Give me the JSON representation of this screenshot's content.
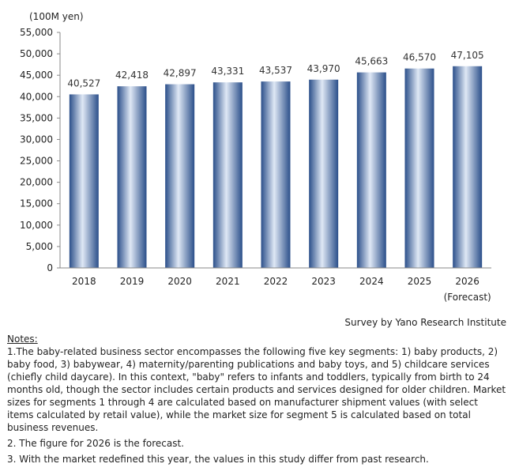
{
  "chart_data": {
    "type": "bar",
    "unit_label": "(100M yen)",
    "categories": [
      "2018",
      "2019",
      "2020",
      "2021",
      "2022",
      "2023",
      "2024",
      "2025",
      "2026"
    ],
    "category_notes": [
      "",
      "",
      "",
      "",
      "",
      "",
      "",
      "",
      "(Forecast)"
    ],
    "values": [
      40527,
      42418,
      42897,
      43331,
      43537,
      43970,
      45663,
      46570,
      47105
    ],
    "value_labels": [
      "40,527",
      "42,418",
      "42,897",
      "43,331",
      "43,537",
      "43,970",
      "45,663",
      "46,570",
      "47,105"
    ],
    "ylim": [
      0,
      55000
    ],
    "ytick_step": 5000,
    "ytick_labels": [
      "0",
      "5,000",
      "10,000",
      "15,000",
      "20,000",
      "25,000",
      "30,000",
      "35,000",
      "40,000",
      "45,000",
      "50,000",
      "55,000"
    ],
    "grid": false,
    "bar_color": "#2b4f8a"
  },
  "source": "Survey by Yano Research Institute",
  "notes": {
    "heading": "Notes:",
    "items": [
      "1.The baby-related business sector encompasses the following five key segments: 1) baby products, 2) baby food, 3) babywear, 4) maternity/parenting publications and baby toys, and 5) childcare services (chiefly child daycare). In this context, \"baby\" refers to infants and toddlers, typically from birth to 24 months old, though the sector includes certain products and services designed for older children. Market sizes for segments 1 through 4 are calculated based on manufacturer shipment values (with select items calculated by retail value), while the market size for segment 5 is calculated based on total business revenues.",
      "2. The figure for 2026 is the forecast.",
      "3. With the market redefined this year, the values in this study differ from past research."
    ]
  }
}
